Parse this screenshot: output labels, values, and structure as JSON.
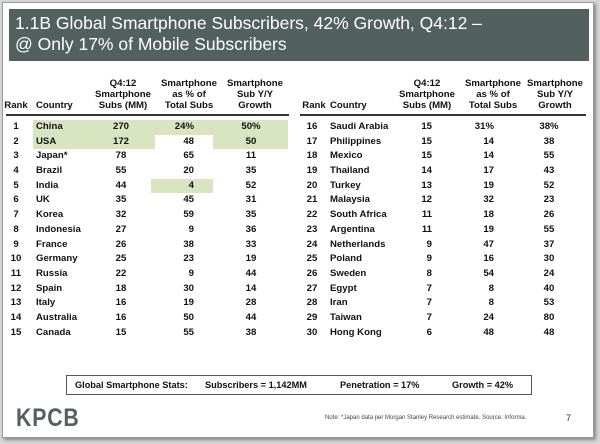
{
  "title": {
    "line1": "1.1B Global Smartphone Subscribers, 42% Growth, Q4:12 –",
    "line2": "@ Only 17% of Mobile Subscribers"
  },
  "highlight_color": "#d8e5c0",
  "title_bar_color": "#52605e",
  "headers": {
    "rank": "Rank",
    "country": "Country",
    "subs_1": "Q4:12",
    "subs_2": "Smartphone",
    "subs_3": "Subs (MM)",
    "pct_1": "Smartphone",
    "pct_2": "as % of",
    "pct_3": "Total Subs",
    "growth_1": "Smartphone",
    "growth_2": "Sub Y/Y",
    "growth_3": "Growth"
  },
  "chart_data": {
    "type": "table",
    "title": "1.1B Global Smartphone Subscribers, 42% Growth, Q4:12 – @ Only 17% of Mobile Subscribers",
    "columns": [
      "Rank",
      "Country",
      "Q4:12 Smartphone Subs (MM)",
      "Smartphone as % of Total Subs",
      "Smartphone Sub Y/Y Growth"
    ],
    "left_rows": [
      {
        "rank": "1",
        "country": "China",
        "subs": "270",
        "pct": "24%",
        "growth": "50%",
        "hl": [
          "country",
          "subs",
          "pct",
          "growth"
        ]
      },
      {
        "rank": "2",
        "country": "USA",
        "subs": "172",
        "pct": "48",
        "growth": "50",
        "hl": [
          "country",
          "subs",
          "growth"
        ]
      },
      {
        "rank": "3",
        "country": "Japan*",
        "subs": "78",
        "pct": "65",
        "growth": "11",
        "hl": []
      },
      {
        "rank": "4",
        "country": "Brazil",
        "subs": "55",
        "pct": "20",
        "growth": "35",
        "hl": []
      },
      {
        "rank": "5",
        "country": "India",
        "subs": "44",
        "pct": "4",
        "growth": "52",
        "hl": [
          "pct"
        ]
      },
      {
        "rank": "6",
        "country": "UK",
        "subs": "35",
        "pct": "45",
        "growth": "31",
        "hl": []
      },
      {
        "rank": "7",
        "country": "Korea",
        "subs": "32",
        "pct": "59",
        "growth": "35",
        "hl": []
      },
      {
        "rank": "8",
        "country": "Indonesia",
        "subs": "27",
        "pct": "9",
        "growth": "36",
        "hl": []
      },
      {
        "rank": "9",
        "country": "France",
        "subs": "26",
        "pct": "38",
        "growth": "33",
        "hl": []
      },
      {
        "rank": "10",
        "country": "Germany",
        "subs": "25",
        "pct": "23",
        "growth": "19",
        "hl": []
      },
      {
        "rank": "11",
        "country": "Russia",
        "subs": "22",
        "pct": "9",
        "growth": "44",
        "hl": []
      },
      {
        "rank": "12",
        "country": "Spain",
        "subs": "18",
        "pct": "30",
        "growth": "14",
        "hl": []
      },
      {
        "rank": "13",
        "country": "Italy",
        "subs": "16",
        "pct": "19",
        "growth": "28",
        "hl": []
      },
      {
        "rank": "14",
        "country": "Australia",
        "subs": "16",
        "pct": "50",
        "growth": "44",
        "hl": []
      },
      {
        "rank": "15",
        "country": "Canada",
        "subs": "15",
        "pct": "55",
        "growth": "38",
        "hl": []
      }
    ],
    "right_rows": [
      {
        "rank": "16",
        "country": "Saudi Arabia",
        "subs": "15",
        "pct": "31%",
        "growth": "38%",
        "hl": []
      },
      {
        "rank": "17",
        "country": "Philippines",
        "subs": "15",
        "pct": "14",
        "growth": "38",
        "hl": []
      },
      {
        "rank": "18",
        "country": "Mexico",
        "subs": "15",
        "pct": "14",
        "growth": "55",
        "hl": []
      },
      {
        "rank": "19",
        "country": "Thailand",
        "subs": "14",
        "pct": "17",
        "growth": "43",
        "hl": []
      },
      {
        "rank": "20",
        "country": "Turkey",
        "subs": "13",
        "pct": "19",
        "growth": "52",
        "hl": []
      },
      {
        "rank": "21",
        "country": "Malaysia",
        "subs": "12",
        "pct": "32",
        "growth": "23",
        "hl": []
      },
      {
        "rank": "22",
        "country": "South Africa",
        "subs": "11",
        "pct": "18",
        "growth": "26",
        "hl": []
      },
      {
        "rank": "23",
        "country": "Argentina",
        "subs": "11",
        "pct": "19",
        "growth": "55",
        "hl": []
      },
      {
        "rank": "24",
        "country": "Netherlands",
        "subs": "9",
        "pct": "47",
        "growth": "37",
        "hl": []
      },
      {
        "rank": "25",
        "country": "Poland",
        "subs": "9",
        "pct": "16",
        "growth": "30",
        "hl": []
      },
      {
        "rank": "26",
        "country": "Sweden",
        "subs": "8",
        "pct": "54",
        "growth": "24",
        "hl": []
      },
      {
        "rank": "27",
        "country": "Egypt",
        "subs": "7",
        "pct": "8",
        "growth": "40",
        "hl": []
      },
      {
        "rank": "28",
        "country": "Iran",
        "subs": "7",
        "pct": "8",
        "growth": "53",
        "hl": []
      },
      {
        "rank": "29",
        "country": "Taiwan",
        "subs": "7",
        "pct": "24",
        "growth": "80",
        "hl": []
      },
      {
        "rank": "30",
        "country": "Hong Kong",
        "subs": "6",
        "pct": "48",
        "growth": "48",
        "hl": []
      }
    ]
  },
  "stats": {
    "label": "Global Smartphone Stats:",
    "subscribers": "Subscribers = 1,142MM",
    "penetration": "Penetration = 17%",
    "growth": "Growth = 42%"
  },
  "footer": {
    "logo": "KPCB",
    "note": "Note: *Japan data per Morgan Stanley Research estimate.  Source: Informa.",
    "page": "7"
  }
}
